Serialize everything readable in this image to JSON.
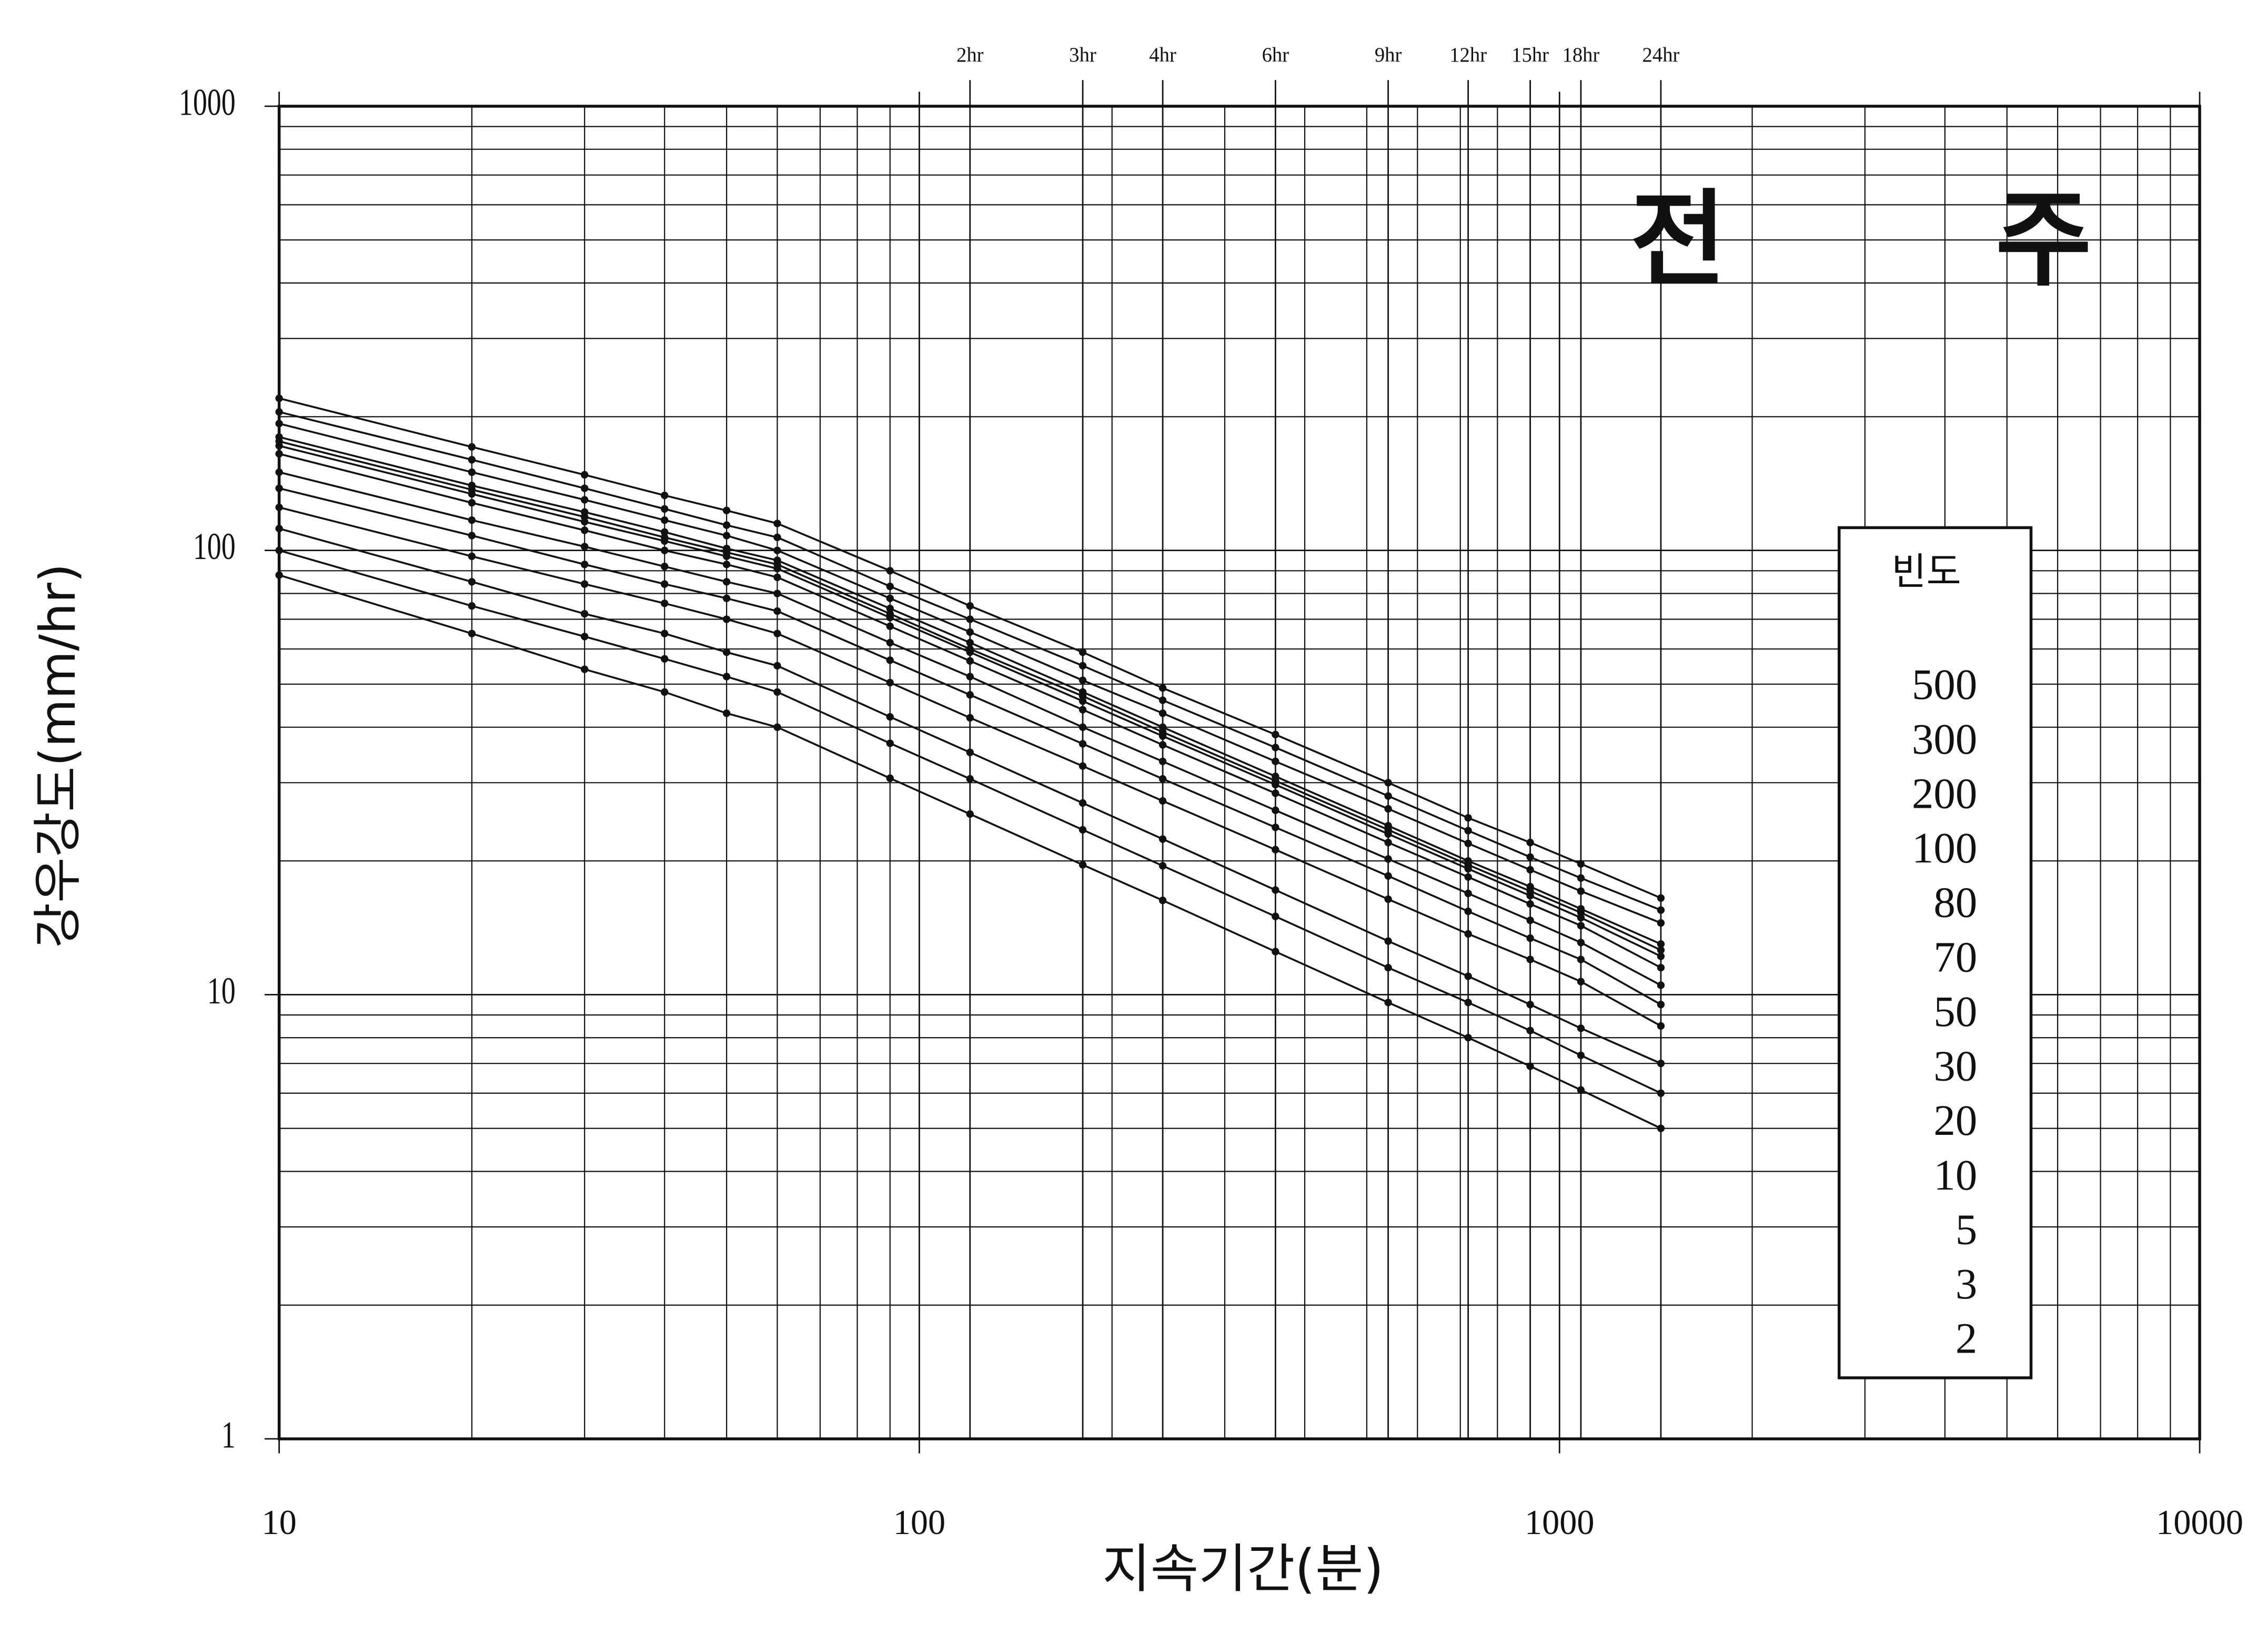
{
  "chart_data": {
    "type": "line",
    "title": "전 주",
    "x_label": "지속기간(분)",
    "y_label": "강우강도(mm/hr)",
    "legend_title": "빈도",
    "legend": "right",
    "log_x": true,
    "log_y": true,
    "grid": true,
    "color": "#111",
    "xlim": [
      10,
      10000
    ],
    "ylim": [
      1,
      1000
    ],
    "xticks": [
      10,
      100,
      1000,
      10000
    ],
    "yticks": [
      1,
      10,
      100,
      1000
    ],
    "x2ticks": [
      {
        "value": 120,
        "label": "2hr"
      },
      {
        "value": 180,
        "label": "3hr"
      },
      {
        "value": 240,
        "label": "4hr"
      },
      {
        "value": 360,
        "label": "6hr"
      },
      {
        "value": 540,
        "label": "9hr"
      },
      {
        "value": 720,
        "label": "12hr"
      },
      {
        "value": 900,
        "label": "15hr"
      },
      {
        "value": 1080,
        "label": "18hr"
      },
      {
        "value": 1440,
        "label": "24hr"
      }
    ],
    "x": [
      10,
      20,
      30,
      40,
      50,
      60,
      90,
      120,
      180,
      240,
      360,
      540,
      720,
      900,
      1080,
      1440
    ],
    "series": [
      {
        "name": "500",
        "values": [
          220,
          171,
          148,
          133,
          123,
          115,
          90,
          75,
          59,
          49,
          38.5,
          30,
          25,
          22,
          19.7,
          16.5
        ]
      },
      {
        "name": "300",
        "values": [
          205,
          160,
          138,
          124,
          114,
          107,
          83,
          70,
          55,
          46,
          36,
          28,
          23.4,
          20.4,
          18.3,
          15.5
        ]
      },
      {
        "name": "200",
        "values": [
          193,
          150,
          130,
          117,
          108,
          100,
          78,
          65.5,
          51,
          43,
          33.5,
          26.2,
          21.9,
          19.1,
          17.1,
          14.5
        ]
      },
      {
        "name": "100",
        "values": [
          180,
          140,
          122,
          110,
          101,
          95,
          74,
          62,
          48,
          40,
          31,
          24,
          20,
          17.5,
          15.6,
          13
        ]
      },
      {
        "name": "80",
        "values": [
          176,
          137,
          119,
          107,
          99,
          93,
          72,
          60,
          47,
          39,
          30.3,
          23.5,
          19.6,
          17.1,
          15.3,
          12.6
        ]
      },
      {
        "name": "70",
        "values": [
          172,
          134,
          116,
          105,
          97,
          91,
          70.6,
          59,
          45.8,
          38.2,
          29.7,
          23,
          19.2,
          16.7,
          14.9,
          12.2
        ]
      },
      {
        "name": "50",
        "values": [
          165,
          128,
          111,
          100,
          93,
          87,
          67.5,
          56.4,
          43.8,
          36.5,
          28.4,
          22,
          18.4,
          16,
          14.3,
          11.5
        ]
      },
      {
        "name": "30",
        "values": [
          150,
          117,
          102,
          92,
          85,
          80,
          62,
          52,
          40,
          33.5,
          26,
          20.2,
          16.9,
          14.7,
          13.1,
          10.5
        ]
      },
      {
        "name": "20",
        "values": [
          138,
          108,
          93,
          84,
          78,
          73,
          56.6,
          47.3,
          36.7,
          30.6,
          23.8,
          18.5,
          15.4,
          13.4,
          12,
          9.5
        ]
      },
      {
        "name": "10",
        "values": [
          125,
          97,
          84,
          76,
          70,
          65,
          50.4,
          42,
          32.7,
          27.3,
          21.2,
          16.4,
          13.7,
          12,
          10.7,
          8.5
        ]
      },
      {
        "name": "5",
        "values": [
          112,
          85,
          72,
          65,
          59,
          55,
          42.2,
          35.1,
          27,
          22.4,
          17.2,
          13.2,
          11,
          9.5,
          8.4,
          7
        ]
      },
      {
        "name": "3",
        "values": [
          100,
          75,
          64,
          57,
          52,
          48,
          36.8,
          30.6,
          23.5,
          19.5,
          15,
          11.5,
          9.6,
          8.3,
          7.3,
          6
        ]
      },
      {
        "name": "2",
        "values": [
          88,
          65,
          54,
          48,
          43,
          40,
          30.7,
          25.5,
          19.6,
          16.3,
          12.5,
          9.6,
          8,
          6.9,
          6.1,
          5
        ]
      }
    ]
  }
}
